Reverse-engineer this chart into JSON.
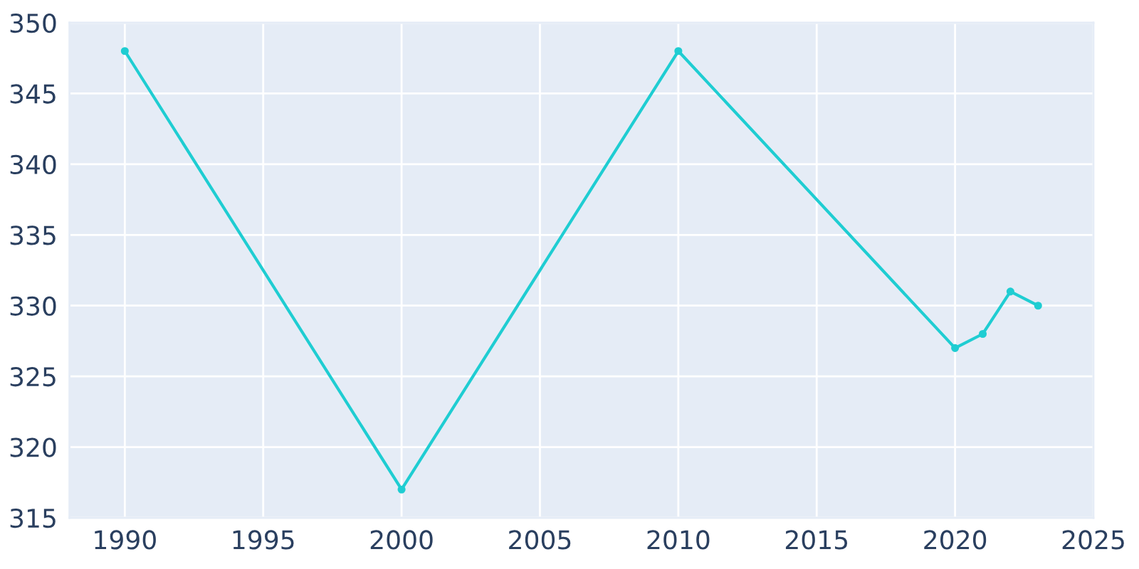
{
  "chart_data": {
    "type": "line",
    "x": [
      1990,
      2000,
      2010,
      2020,
      2021,
      2022,
      2023
    ],
    "series": [
      {
        "color": "#1fcdd2",
        "values": [
          348,
          317,
          348,
          327,
          328,
          331,
          330
        ]
      }
    ],
    "xlim": [
      1988,
      2025
    ],
    "xticks": [
      1990,
      1995,
      2000,
      2005,
      2010,
      2015,
      2020,
      2025
    ],
    "ylim": [
      315,
      350
    ],
    "yticks": [
      315,
      320,
      325,
      330,
      335,
      340,
      345,
      350
    ],
    "grid": true,
    "marker": "circle",
    "line_style": "solid"
  }
}
